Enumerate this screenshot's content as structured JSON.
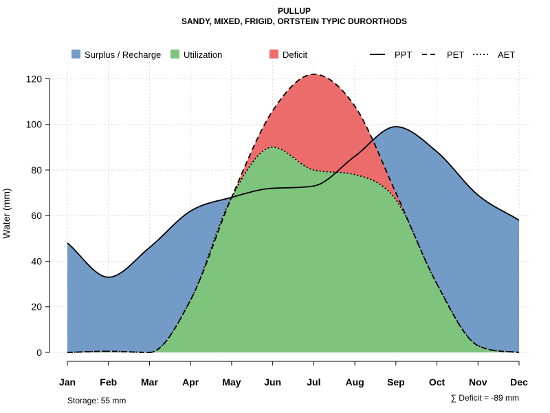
{
  "chart_data": {
    "type": "area",
    "title": "PULLUP",
    "subtitle": "SANDY, MIXED, FRIGID, ORTSTEIN TYPIC DURORTHODS",
    "ylabel": "Water (mm)",
    "xlabel": "",
    "ylim": [
      0,
      127
    ],
    "yticks": [
      0,
      20,
      40,
      60,
      80,
      100,
      120
    ],
    "grid": true,
    "categories": [
      "Jan",
      "Feb",
      "Mar",
      "Apr",
      "May",
      "Jun",
      "Jul",
      "Aug",
      "Sep",
      "Oct",
      "Nov",
      "Dec"
    ],
    "series": [
      {
        "name": "PPT",
        "style": "solid",
        "values": [
          48,
          33,
          46,
          62,
          68,
          72,
          73,
          86,
          99,
          88,
          69,
          58
        ]
      },
      {
        "name": "PET",
        "style": "dashed",
        "values": [
          0,
          0.5,
          0,
          23,
          68,
          106,
          122,
          108,
          70,
          30,
          3,
          0
        ]
      },
      {
        "name": "AET",
        "style": "dotted",
        "values": [
          0,
          0.5,
          0,
          23,
          68,
          90,
          80,
          78,
          67,
          30,
          3,
          0
        ]
      }
    ],
    "legend": [
      {
        "label": "Surplus / Recharge",
        "kind": "fill",
        "color": "#729BC8"
      },
      {
        "label": "Utilization",
        "kind": "fill",
        "color": "#7FC47D"
      },
      {
        "label": "Deficit",
        "kind": "fill",
        "color": "#EC6C6C"
      },
      {
        "label": "PPT",
        "kind": "line",
        "dash": "solid"
      },
      {
        "label": "PET",
        "kind": "line",
        "dash": "dashed"
      },
      {
        "label": "AET",
        "kind": "line",
        "dash": "dotted"
      }
    ],
    "legend_position": "top",
    "colors": {
      "surplus": "#729BC8",
      "utilization": "#7FC47D",
      "deficit": "#EC6C6C"
    },
    "annotations": {
      "storage": "Storage: 55 mm",
      "deficit": "∑ Deficit = -89 mm"
    }
  }
}
